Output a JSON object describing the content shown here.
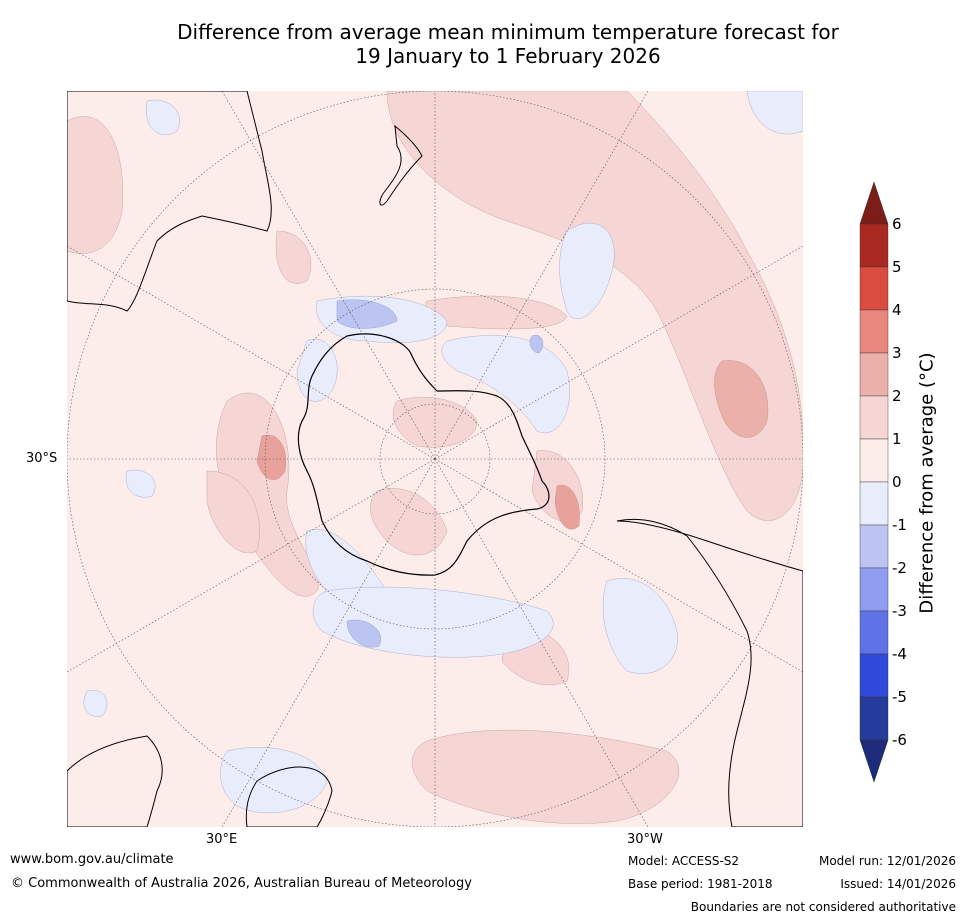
{
  "title_line1": "Difference from average mean minimum temperature forecast for",
  "title_line2": "19 January to 1 February 2026",
  "map": {
    "projection": "south-polar-stereographic",
    "ticks": {
      "lat_label": "30°S",
      "lon_label_left": "30°E",
      "lon_label_right": "30°W"
    }
  },
  "colorbar": {
    "title": "Difference from average (°C)",
    "levels": [
      "6",
      "5",
      "4",
      "3",
      "2",
      "1",
      "0",
      "-1",
      "-2",
      "-3",
      "-4",
      "-5",
      "-6"
    ],
    "colors": [
      "#7c1e17",
      "#a8291f",
      "#db4c40",
      "#e8887e",
      "#ecb0aa",
      "#f6d6d4",
      "#fcecea",
      "#e9ecfb",
      "#bcc4f2",
      "#8f9df0",
      "#5f72e6",
      "#3049d8",
      "#263c9c",
      "#1d2c7a"
    ]
  },
  "footer": {
    "website": "www.bom.gov.au/climate",
    "copyright": "© Commonwealth of Australia 2026, Australian Bureau of Meteorology",
    "model": "Model: ACCESS-S2",
    "base_period": "Base period: 1981-2018",
    "model_run": "Model run: 12/01/2026",
    "issued": "Issued: 14/01/2026",
    "disclaimer": "Boundaries are not considered authoritative"
  }
}
